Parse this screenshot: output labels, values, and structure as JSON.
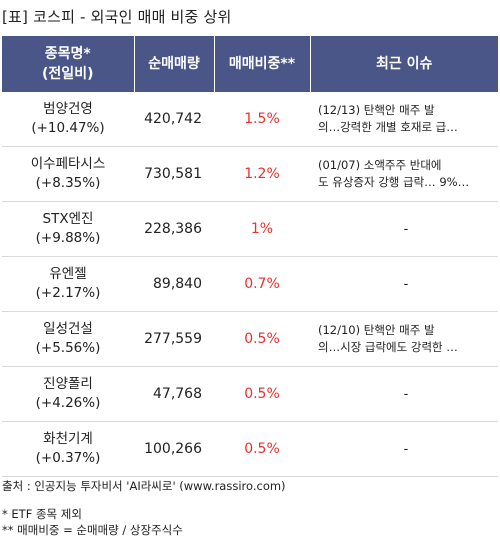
{
  "title": "[표] 코스피 - 외국인 매매 비중 상위",
  "header": {
    "name_line1": "종목명*",
    "name_line2": "(전일비)",
    "net_volume": "순매매량",
    "ratio": "매매비중**",
    "issue": "최근 이슈"
  },
  "rows": [
    {
      "name": "범양건영",
      "change": "(+10.47%)",
      "net_volume": "420,742",
      "ratio": "1.5%",
      "issue": "(12/13) 탄핵안 매주 발\n의…강력한 개별 호재로 급…"
    },
    {
      "name": "이수페타시스",
      "change": "(+8.35%)",
      "net_volume": "730,581",
      "ratio": "1.2%",
      "issue": "(01/07) 소액주주 반대에\n도 유상증자 강행 급락… 9%…"
    },
    {
      "name": "STX엔진",
      "change": "(+9.88%)",
      "net_volume": "228,386",
      "ratio": "1%",
      "issue": "-"
    },
    {
      "name": "유엔젤",
      "change": "(+2.17%)",
      "net_volume": "89,840",
      "ratio": "0.7%",
      "issue": "-"
    },
    {
      "name": "일성건설",
      "change": "(+5.56%)",
      "net_volume": "277,559",
      "ratio": "0.5%",
      "issue": "(12/10) 탄핵안 매주 발\n의…시장 급락에도 강력한 …"
    },
    {
      "name": "진양폴리",
      "change": "(+4.26%)",
      "net_volume": "47,768",
      "ratio": "0.5%",
      "issue": "-"
    },
    {
      "name": "화천기계",
      "change": "(+0.37%)",
      "net_volume": "100,266",
      "ratio": "0.5%",
      "issue": "-"
    }
  ],
  "source": "출처 : 인공지능 투자비서 'AI라씨로' (www.rassiro.com)",
  "note1": "* ETF 종목 제외",
  "note2": "** 매매비중 = 순매매량 / 상장주식수",
  "colors": {
    "header_bg": "#4a5688",
    "ratio_text": "#e8312e"
  }
}
